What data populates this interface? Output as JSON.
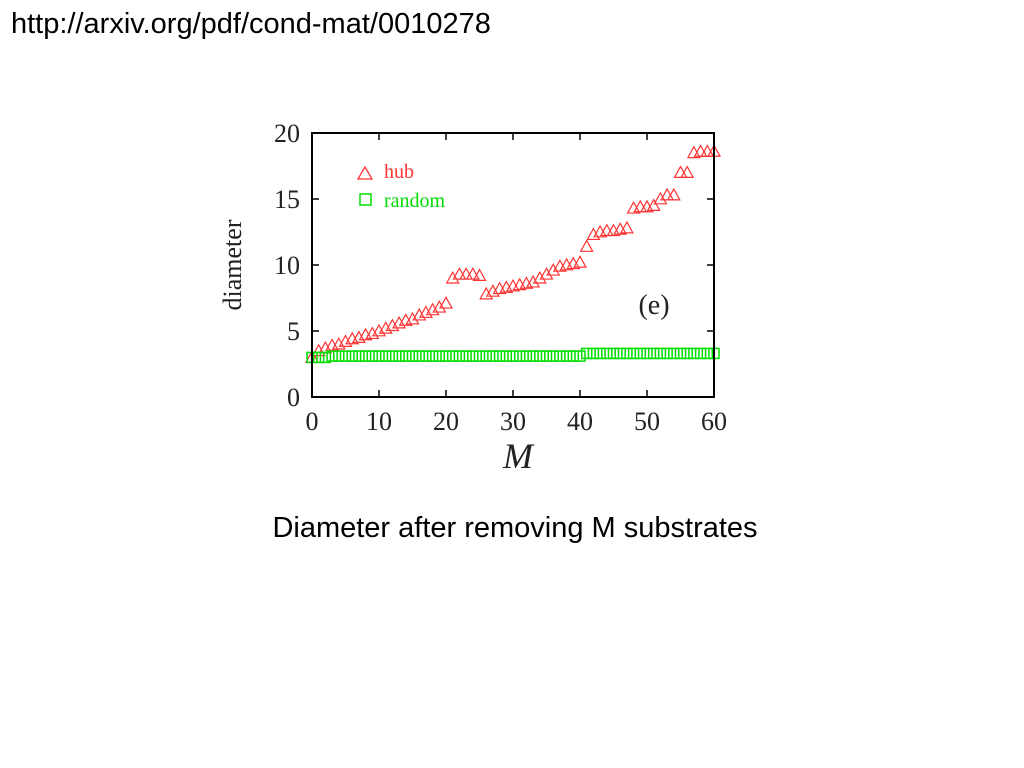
{
  "header": {
    "url": "http://arxiv.org/pdf/cond-mat/0010278"
  },
  "caption": "Diameter after removing M substrates",
  "chart_data": {
    "type": "scatter",
    "xlabel": "M",
    "ylabel": "diameter",
    "xlim": [
      0,
      60
    ],
    "ylim": [
      0,
      20
    ],
    "xticks": [
      0,
      10,
      20,
      30,
      40,
      50,
      60
    ],
    "yticks": [
      0,
      5,
      10,
      15,
      20
    ],
    "annotation": "(e)",
    "legend_position": "top-left",
    "series": [
      {
        "name": "hub",
        "marker": "triangle",
        "color": "#ff3333",
        "x": [
          0,
          1,
          2,
          3,
          4,
          5,
          6,
          7,
          8,
          9,
          10,
          11,
          12,
          13,
          14,
          15,
          16,
          17,
          18,
          19,
          20,
          21,
          22,
          23,
          24,
          25,
          26,
          27,
          28,
          29,
          30,
          31,
          32,
          33,
          34,
          35,
          36,
          37,
          38,
          39,
          40,
          41,
          42,
          43,
          44,
          45,
          46,
          47,
          48,
          49,
          50,
          51,
          52,
          53,
          54,
          55,
          56,
          57,
          58,
          59,
          60
        ],
        "values": [
          3,
          3.5,
          3.7,
          3.9,
          4.0,
          4.2,
          4.4,
          4.5,
          4.7,
          4.8,
          5.0,
          5.2,
          5.4,
          5.6,
          5.8,
          5.9,
          6.2,
          6.4,
          6.6,
          6.8,
          7.1,
          9.0,
          9.3,
          9.3,
          9.3,
          9.2,
          7.8,
          8.0,
          8.2,
          8.3,
          8.4,
          8.5,
          8.6,
          8.7,
          9.0,
          9.3,
          9.6,
          9.9,
          10.0,
          10.1,
          10.2,
          11.4,
          12.3,
          12.5,
          12.6,
          12.6,
          12.7,
          12.8,
          14.3,
          14.4,
          14.4,
          14.5,
          15.0,
          15.3,
          15.3,
          17.0,
          17.0,
          18.5,
          18.6,
          18.6,
          18.6
        ]
      },
      {
        "name": "random",
        "marker": "square",
        "color": "#00dd00",
        "x": [
          0,
          1,
          2,
          3,
          4,
          5,
          6,
          7,
          8,
          9,
          10,
          11,
          12,
          13,
          14,
          15,
          16,
          17,
          18,
          19,
          20,
          21,
          22,
          23,
          24,
          25,
          26,
          27,
          28,
          29,
          30,
          31,
          32,
          33,
          34,
          35,
          36,
          37,
          38,
          39,
          40,
          41,
          42,
          43,
          44,
          45,
          46,
          47,
          48,
          49,
          50,
          51,
          52,
          53,
          54,
          55,
          56,
          57,
          58,
          59,
          60
        ],
        "values": [
          3,
          3,
          3,
          3.1,
          3.1,
          3.1,
          3.1,
          3.1,
          3.1,
          3.1,
          3.1,
          3.1,
          3.1,
          3.1,
          3.1,
          3.1,
          3.1,
          3.1,
          3.1,
          3.1,
          3.1,
          3.1,
          3.1,
          3.1,
          3.1,
          3.1,
          3.1,
          3.1,
          3.1,
          3.1,
          3.1,
          3.1,
          3.1,
          3.1,
          3.1,
          3.1,
          3.1,
          3.1,
          3.1,
          3.1,
          3.1,
          3.3,
          3.3,
          3.3,
          3.3,
          3.3,
          3.3,
          3.3,
          3.3,
          3.3,
          3.3,
          3.3,
          3.3,
          3.3,
          3.3,
          3.3,
          3.3,
          3.3,
          3.3,
          3.3,
          3.3
        ]
      }
    ]
  }
}
